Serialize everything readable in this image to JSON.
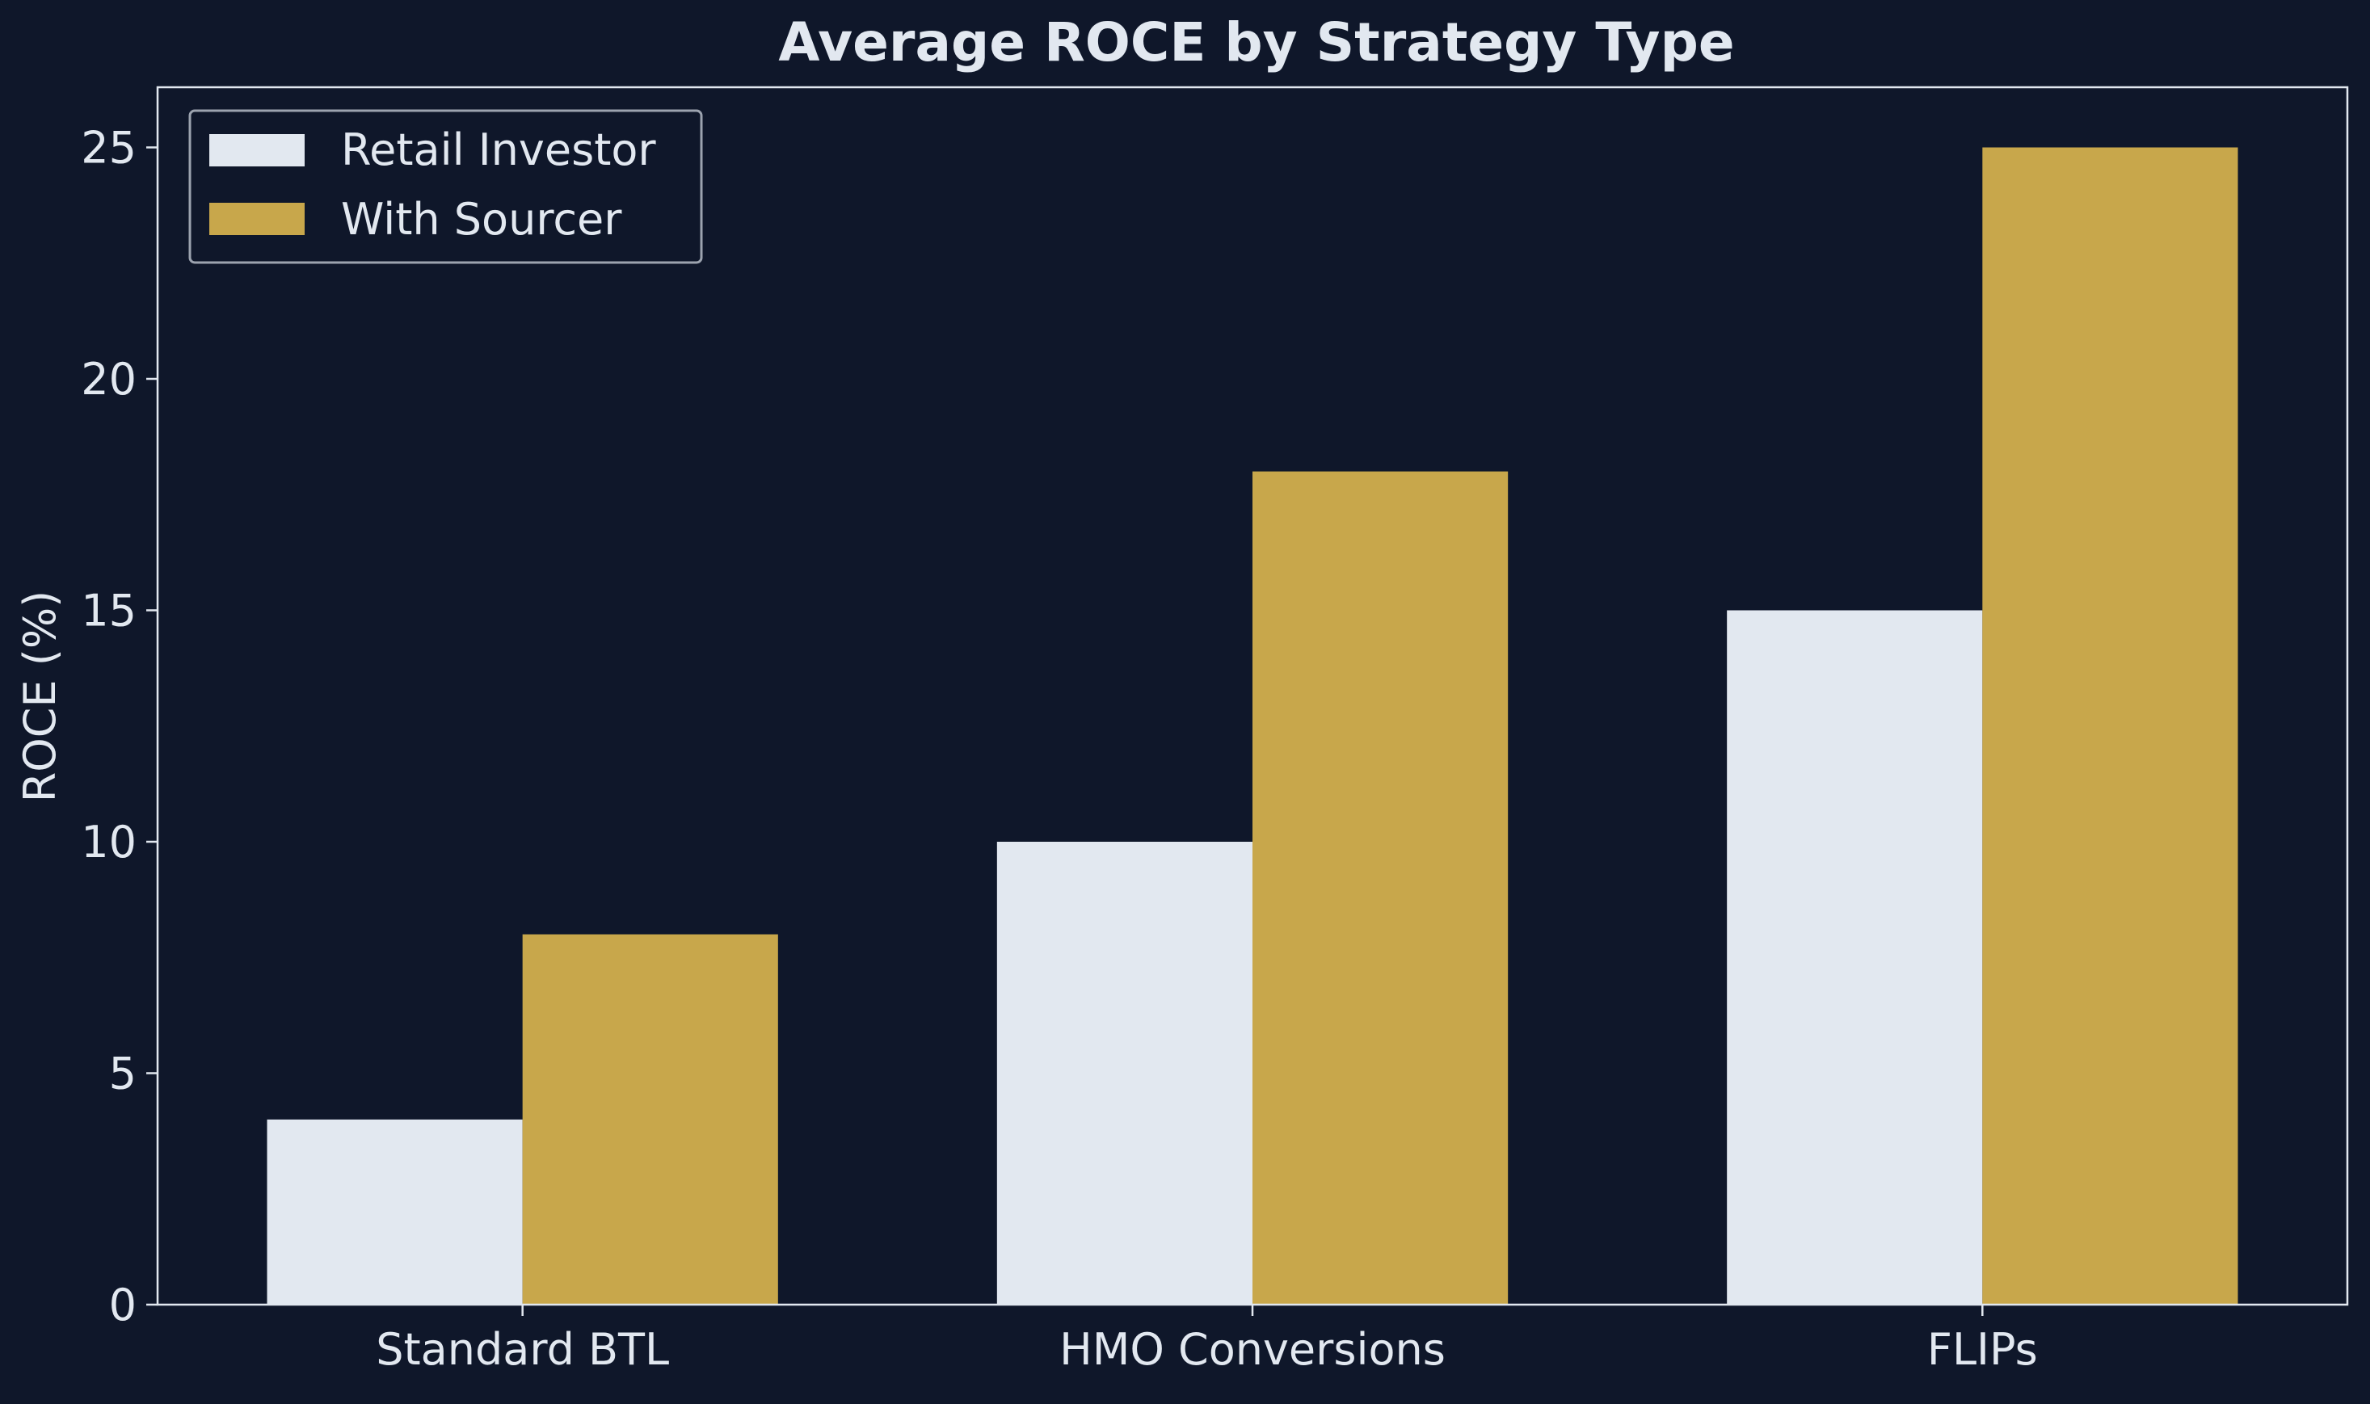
{
  "chart_data": {
    "type": "bar",
    "title": "Average ROCE by Strategy Type",
    "xlabel": "",
    "ylabel": "ROCE (%)",
    "categories": [
      "Standard BTL",
      "HMO Conversions",
      "FLIPs"
    ],
    "series": [
      {
        "name": "Retail Investor",
        "values": [
          4,
          10,
          15
        ],
        "color": "#e2e8f0"
      },
      {
        "name": "With Sourcer",
        "values": [
          8,
          18,
          25
        ],
        "color": "#c8a74b"
      }
    ],
    "ylim": [
      0,
      26.3
    ],
    "yticks": [
      0,
      5,
      10,
      15,
      20,
      25
    ],
    "grid": false,
    "legend_position": "top-left"
  },
  "colors": {
    "background": "#0f172a",
    "text": "#e2e8f0",
    "axis": "#e2e8f0"
  }
}
